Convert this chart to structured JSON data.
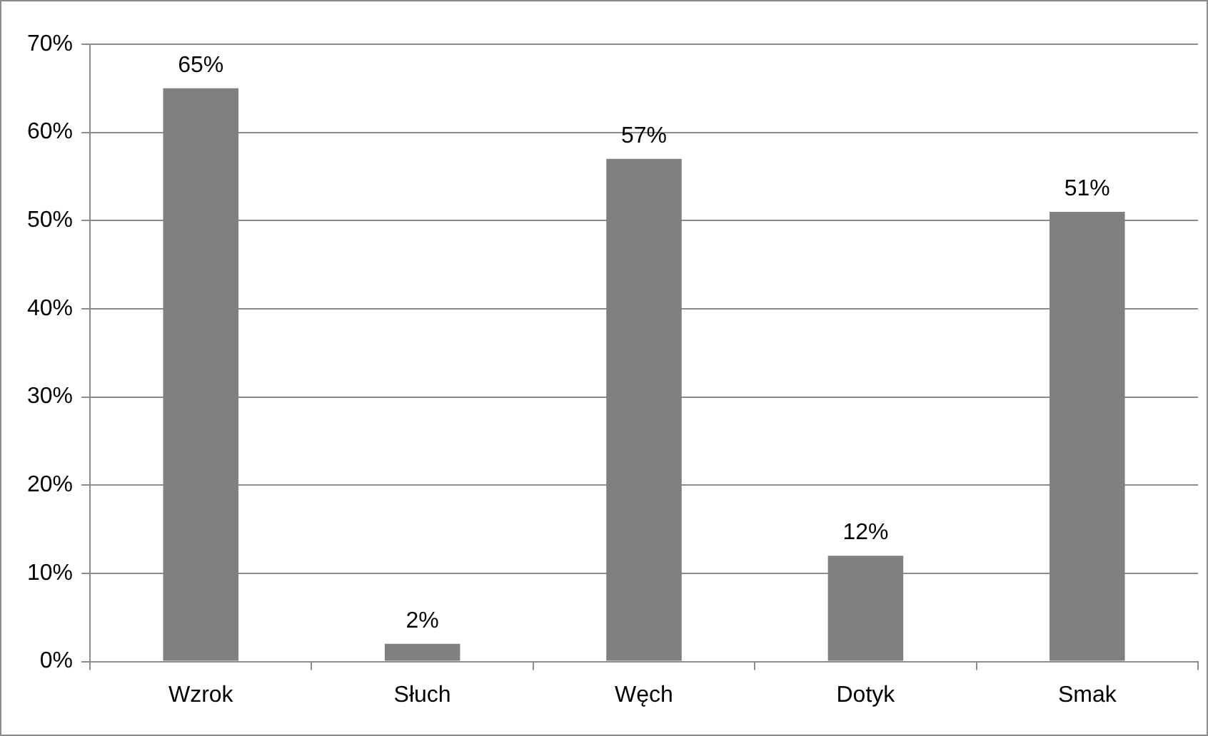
{
  "chart_data": {
    "type": "bar",
    "categories": [
      "Wzrok",
      "Słuch",
      "Węch",
      "Dotyk",
      "Smak"
    ],
    "values": [
      65,
      2,
      57,
      12,
      51
    ],
    "color": "#808080",
    "value_labels": [
      "65%",
      "2%",
      "57%",
      "12%",
      "51%"
    ],
    "ylim": [
      0,
      70
    ],
    "yticks": [
      {
        "value": 0,
        "label": "0%"
      },
      {
        "value": 10,
        "label": "10%"
      },
      {
        "value": 20,
        "label": "20%"
      },
      {
        "value": 30,
        "label": "30%"
      },
      {
        "value": 40,
        "label": "40%"
      },
      {
        "value": 50,
        "label": "50%"
      },
      {
        "value": 60,
        "label": "60%"
      },
      {
        "value": 70,
        "label": "70%"
      }
    ],
    "grid": "y",
    "legend": false
  }
}
